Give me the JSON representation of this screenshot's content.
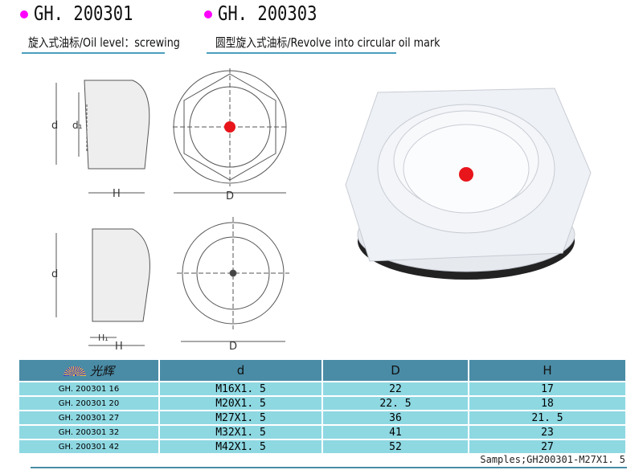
{
  "left": {
    "title": "GH. 200301",
    "subtitle": "旋入式油标/Oil level：screwing"
  },
  "right": {
    "title": "GH. 200303",
    "subtitle": "圆型旋入式油标/Revolve into circular oil mark"
  },
  "drawing_labels": {
    "d": "d",
    "d1": "d₁",
    "H": "H",
    "D": "D",
    "H1": "H₁"
  },
  "table": {
    "logo_text": "光辉",
    "headers": [
      "d",
      "D",
      "H"
    ],
    "rows": [
      {
        "model": "GH. 200301  16",
        "d": "M16X1. 5",
        "D": "22",
        "H": "17"
      },
      {
        "model": "GH. 200301  20",
        "d": "M20X1. 5",
        "D": "22. 5",
        "H": "18"
      },
      {
        "model": "GH. 200301  27",
        "d": "M27X1. 5",
        "D": "36",
        "H": "21. 5"
      },
      {
        "model": "GH. 200301  32",
        "d": "M32X1. 5",
        "D": "41",
        "H": "23"
      },
      {
        "model": "GH. 200301  42",
        "d": "M42X1. 5",
        "D": "52",
        "H": "27"
      }
    ]
  },
  "footer": {
    "sample": "Samples;GH200301-M27X1. 5"
  },
  "colors": {
    "bullet": "#ff00ff",
    "header": "#4a8ca6",
    "row": "#8ed8e2",
    "mark": "#e8151b"
  }
}
